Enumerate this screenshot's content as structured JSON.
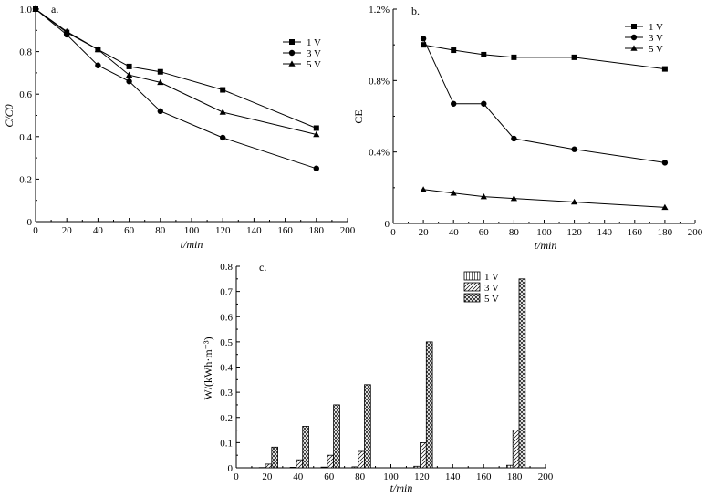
{
  "chart_data": [
    {
      "id": "a",
      "type": "line",
      "panel_label": "a.",
      "xlabel": "t/min",
      "ylabel": "C/C0",
      "xlim": [
        0,
        200
      ],
      "ylim": [
        0,
        1.0
      ],
      "xticks": [
        "0",
        "20",
        "40",
        "60",
        "80",
        "100",
        "120",
        "140",
        "160",
        "180",
        "200"
      ],
      "yticks": [
        "0",
        "0.2",
        "0.4",
        "0.6",
        "0.8",
        "1.0"
      ],
      "legend_position": "top-right",
      "series": [
        {
          "name": "1 V",
          "marker": "square",
          "x": [
            0,
            20,
            40,
            60,
            80,
            120,
            180
          ],
          "y": [
            1.0,
            0.89,
            0.81,
            0.73,
            0.705,
            0.62,
            0.44
          ]
        },
        {
          "name": "3 V",
          "marker": "circle",
          "x": [
            0,
            20,
            40,
            60,
            80,
            120,
            180
          ],
          "y": [
            1.0,
            0.88,
            0.735,
            0.66,
            0.52,
            0.395,
            0.25
          ]
        },
        {
          "name": "5 V",
          "marker": "triangle",
          "x": [
            0,
            20,
            40,
            60,
            80,
            120,
            180
          ],
          "y": [
            1.0,
            0.895,
            0.81,
            0.69,
            0.655,
            0.515,
            0.41
          ]
        }
      ]
    },
    {
      "id": "b",
      "type": "line",
      "panel_label": "b.",
      "xlabel": "t/min",
      "ylabel": "CE",
      "xlim": [
        0,
        200
      ],
      "ylim": [
        0,
        1.2
      ],
      "xticks": [
        "0",
        "20",
        "40",
        "60",
        "80",
        "100",
        "120",
        "140",
        "160",
        "180",
        "200"
      ],
      "yticks": [
        "0",
        "0.4%",
        "0.8%",
        "1.2%"
      ],
      "legend_position": "top-right",
      "series": [
        {
          "name": "1 V",
          "marker": "square",
          "x": [
            20,
            40,
            60,
            80,
            120,
            180
          ],
          "y": [
            1.0,
            0.97,
            0.945,
            0.93,
            0.93,
            0.865
          ]
        },
        {
          "name": "3 V",
          "marker": "circle",
          "x": [
            20,
            40,
            60,
            80,
            120,
            180
          ],
          "y": [
            1.035,
            0.67,
            0.67,
            0.475,
            0.415,
            0.34
          ]
        },
        {
          "name": "5 V",
          "marker": "triangle",
          "x": [
            20,
            40,
            60,
            80,
            120,
            180
          ],
          "y": [
            0.19,
            0.17,
            0.15,
            0.14,
            0.12,
            0.09
          ]
        }
      ]
    },
    {
      "id": "c",
      "type": "bar",
      "panel_label": "c.",
      "xlabel": "t/min",
      "ylabel": "W/(kWh·m⁻³)",
      "xlim": [
        0,
        200
      ],
      "ylim": [
        0,
        0.8
      ],
      "xticks": [
        "0",
        "20",
        "40",
        "60",
        "80",
        "100",
        "120",
        "140",
        "160",
        "180",
        "200"
      ],
      "yticks": [
        "0",
        "0.1",
        "0.2",
        "0.3",
        "0.4",
        "0.5",
        "0.6",
        "0.7",
        "0.8"
      ],
      "legend_position": "top-right",
      "x": [
        20,
        40,
        60,
        80,
        120,
        180
      ],
      "series": [
        {
          "name": "1 V",
          "pattern": "vertical-lines",
          "values": [
            0.001,
            0.002,
            0.003,
            0.004,
            0.006,
            0.01
          ]
        },
        {
          "name": "3 V",
          "pattern": "diagonal-lines",
          "values": [
            0.015,
            0.032,
            0.05,
            0.065,
            0.1,
            0.15
          ]
        },
        {
          "name": "5 V",
          "pattern": "crosshatch",
          "values": [
            0.082,
            0.165,
            0.25,
            0.33,
            0.5,
            0.75
          ]
        }
      ]
    }
  ]
}
